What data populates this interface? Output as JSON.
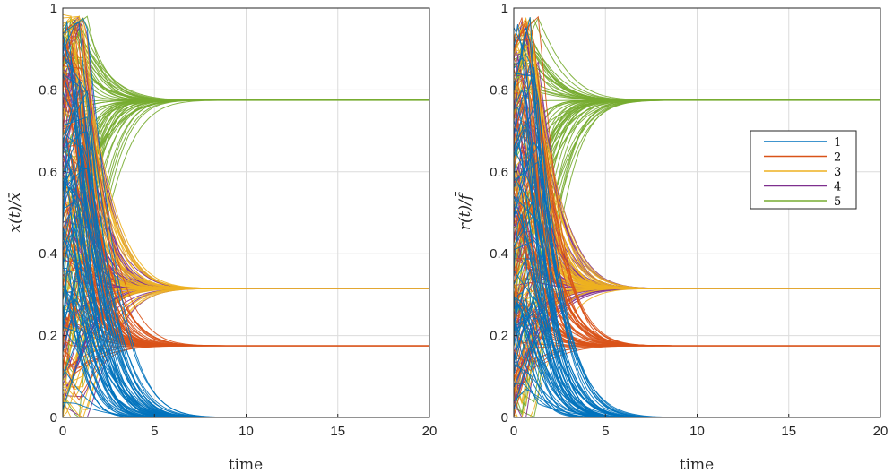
{
  "chart_data": [
    {
      "type": "line",
      "ylabel": "x(t)/x̄",
      "xlabel": "time",
      "xlim": [
        0,
        20
      ],
      "ylim": [
        0,
        1
      ],
      "xticks": [
        "0",
        "5",
        "10",
        "15",
        "20"
      ],
      "yticks": [
        "0",
        "0.2",
        "0.4",
        "0.6",
        "0.8",
        "1"
      ],
      "grid": true,
      "series": [
        {
          "name": "1",
          "color": "#0072BD",
          "steady_state": 0.0,
          "initial_range": [
            0.0,
            0.95
          ]
        },
        {
          "name": "2",
          "color": "#D95319",
          "steady_state": 0.175,
          "initial_range": [
            0.0,
            0.95
          ]
        },
        {
          "name": "3",
          "color": "#EDB120",
          "steady_state": 0.315,
          "initial_range": [
            0.0,
            1.0
          ]
        },
        {
          "name": "4",
          "color": "#7E2F8E",
          "steady_state": 0.315,
          "initial_range": [
            0.0,
            0.95
          ]
        },
        {
          "name": "5",
          "color": "#77AC30",
          "steady_state": 0.775,
          "initial_range": [
            0.0,
            0.95
          ]
        }
      ]
    },
    {
      "type": "line",
      "ylabel": "r(t)/f̄",
      "xlabel": "time",
      "xlim": [
        0,
        20
      ],
      "ylim": [
        0,
        1
      ],
      "xticks": [
        "0",
        "5",
        "10",
        "15",
        "20"
      ],
      "yticks": [
        "0",
        "0.2",
        "0.4",
        "0.6",
        "0.8",
        "1"
      ],
      "grid": true,
      "legend": {
        "location": "east",
        "entries": [
          "1",
          "2",
          "3",
          "4",
          "5"
        ]
      },
      "series": [
        {
          "name": "1",
          "color": "#0072BD",
          "steady_state": 0.0,
          "initial_range": [
            0.0,
            0.98
          ]
        },
        {
          "name": "2",
          "color": "#D95319",
          "steady_state": 0.175,
          "initial_range": [
            0.0,
            0.95
          ]
        },
        {
          "name": "3",
          "color": "#EDB120",
          "steady_state": 0.315,
          "initial_range": [
            0.0,
            0.95
          ]
        },
        {
          "name": "4",
          "color": "#7E2F8E",
          "steady_state": 0.315,
          "initial_range": [
            0.0,
            0.95
          ]
        },
        {
          "name": "5",
          "color": "#77AC30",
          "steady_state": 0.775,
          "initial_range": [
            0.0,
            0.95
          ]
        }
      ]
    }
  ]
}
